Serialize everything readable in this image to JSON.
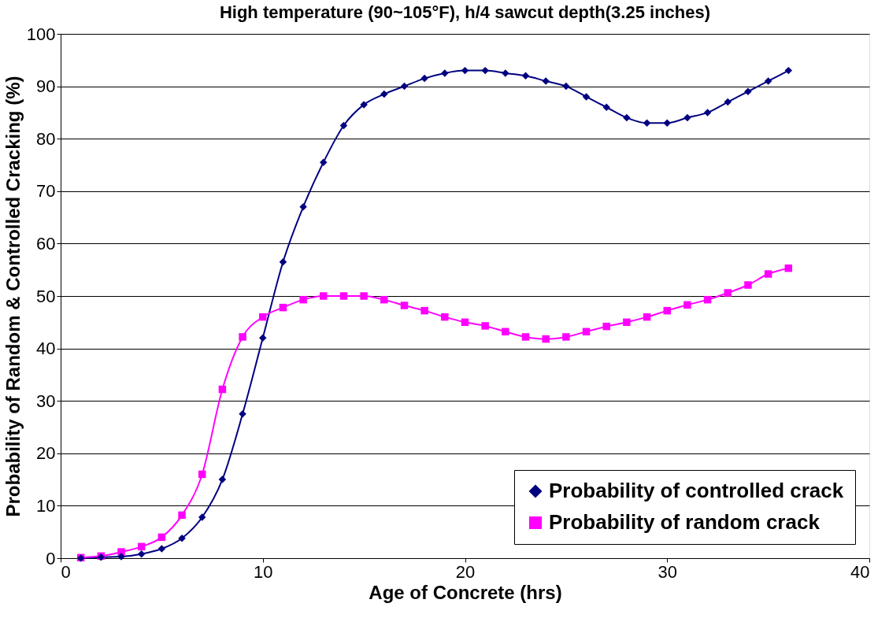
{
  "chart_data": {
    "type": "line",
    "title": "High temperature (90~105°F), h/4 sawcut depth(3.25 inches)",
    "xlabel": "Age of Concrete (hrs)",
    "ylabel": "Probability of Random & Controlled Cracking (%)",
    "x": [
      1,
      2,
      3,
      4,
      5,
      6,
      7,
      8,
      9,
      10,
      11,
      12,
      13,
      14,
      15,
      16,
      17,
      18,
      19,
      20,
      21,
      22,
      23,
      24,
      25,
      26,
      27,
      28,
      29,
      30,
      31,
      32,
      33,
      34,
      35,
      36
    ],
    "series": [
      {
        "name": "Probability of controlled crack",
        "color": "#000080",
        "marker": "diamond",
        "values": [
          0,
          0.2,
          0.3,
          0.8,
          1.8,
          3.8,
          7.8,
          15,
          27.5,
          42,
          56.5,
          67,
          75.5,
          82.5,
          86.5,
          88.5,
          90,
          91.5,
          92.5,
          93,
          93,
          92.5,
          92,
          91,
          90,
          88,
          86,
          84,
          83,
          83,
          84,
          85,
          87,
          89,
          91,
          93
        ]
      },
      {
        "name": "Probability of random crack",
        "color": "#ff00ff",
        "marker": "square",
        "values": [
          0.1,
          0.4,
          1.2,
          2.2,
          4,
          8.2,
          16,
          32.2,
          42.2,
          46,
          47.8,
          49.3,
          50,
          50,
          50,
          49.3,
          48.2,
          47.2,
          46,
          45,
          44.3,
          43.2,
          42.2,
          41.8,
          42.2,
          43.2,
          44.2,
          45,
          46,
          47.2,
          48.3,
          49.3,
          50.6,
          52.1,
          54.2,
          55.3
        ]
      }
    ],
    "xlim": [
      0,
      40
    ],
    "xticks": [
      0,
      10,
      20,
      30,
      40
    ],
    "ylim": [
      0,
      100
    ],
    "yticks": [
      0,
      10,
      20,
      30,
      40,
      50,
      60,
      70,
      80,
      90,
      100
    ],
    "grid": "y",
    "legend": "bottom right",
    "line_style": "solid"
  }
}
